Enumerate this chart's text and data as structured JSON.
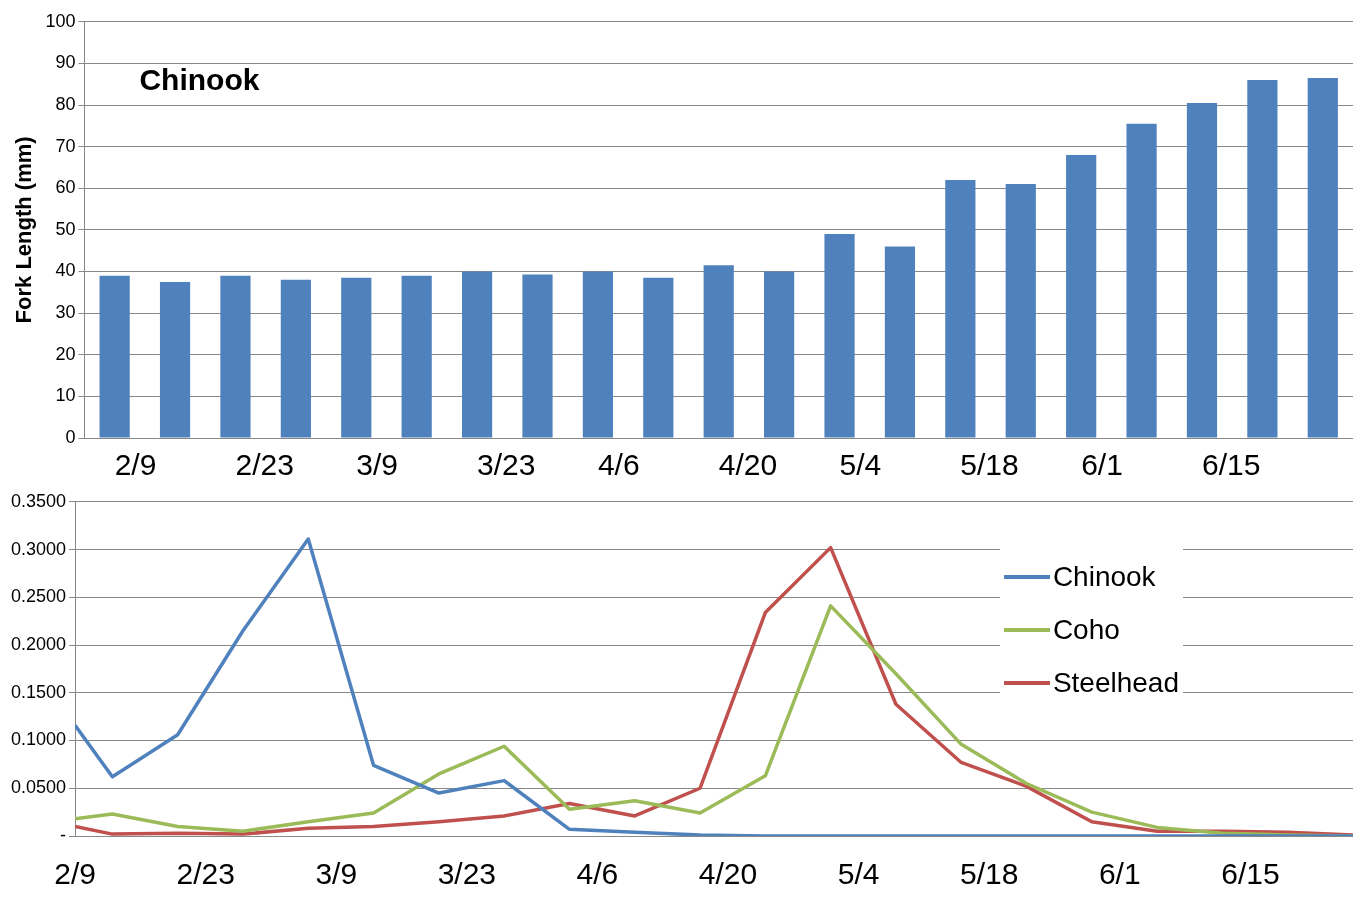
{
  "chart_data": [
    {
      "type": "bar",
      "ylabel": "Fork Length (mm)",
      "annotations": [
        "Chinook"
      ],
      "categories": [
        "2/9",
        null,
        "2/23",
        null,
        "3/9",
        null,
        "3/23",
        null,
        "4/6",
        null,
        "4/20",
        null,
        "5/4",
        null,
        "5/18",
        null,
        "6/1",
        null,
        "6/15",
        null,
        null
      ],
      "values": [
        39,
        37.5,
        39,
        38,
        38.5,
        39,
        40,
        39.3,
        40,
        38.5,
        41.5,
        40,
        49,
        46,
        62,
        61,
        68,
        75.5,
        80.5,
        86,
        86.5
      ],
      "color": "#4f81bd",
      "ylim": [
        0,
        100
      ],
      "yticks": [
        0,
        10,
        20,
        30,
        40,
        50,
        60,
        70,
        80,
        90,
        100
      ],
      "grid": "y",
      "legend": false
    },
    {
      "type": "line",
      "x": [
        "--02-09",
        "--02-13",
        "--02-20",
        "--02-27",
        "--03-06",
        "--03-13",
        "--03-20",
        "--03-27",
        "--04-03",
        "--04-10",
        "--04-17",
        "--04-24",
        "--05-01",
        "--05-08",
        "--05-15",
        "--05-22",
        "--05-29",
        "--06-05",
        "--06-12",
        "--06-19",
        "--06-26"
      ],
      "series": [
        {
          "name": "Chinook",
          "color": "#4f81bd",
          "values": [
            0.116,
            0.062,
            0.106,
            0.215,
            0.311,
            0.074,
            0.045,
            0.058,
            0.007,
            0.004,
            0.001,
            0,
            0,
            0,
            0,
            0,
            0,
            0,
            0,
            0,
            0
          ]
        },
        {
          "name": "Coho",
          "color": "#9bbb59",
          "values": [
            0.018,
            0.023,
            0.01,
            0.005,
            0.015,
            0.024,
            0.065,
            0.094,
            0.028,
            0.037,
            0.024,
            0.063,
            0.241,
            0.17,
            0.096,
            0.055,
            0.025,
            0.009,
            0.003,
            0.001,
            0
          ]
        },
        {
          "name": "Steelhead",
          "color": "#c0504d",
          "values": [
            0.01,
            0.002,
            0.003,
            0.002,
            0.008,
            0.01,
            0.015,
            0.021,
            0.034,
            0.021,
            0.05,
            0.234,
            0.302,
            0.138,
            0.077,
            0.052,
            0.015,
            0.005,
            0.005,
            0.004,
            0.001
          ]
        }
      ],
      "xlim": [
        "--02-09",
        "--06-26"
      ],
      "xticks": [
        {
          "value": "--02-09",
          "label": "2/9"
        },
        {
          "value": "--02-23",
          "label": "2/23"
        },
        {
          "value": "--03-09",
          "label": "3/9"
        },
        {
          "value": "--03-23",
          "label": "3/23"
        },
        {
          "value": "--04-06",
          "label": "4/6"
        },
        {
          "value": "--04-20",
          "label": "4/20"
        },
        {
          "value": "--05-04",
          "label": "5/4"
        },
        {
          "value": "--05-18",
          "label": "5/18"
        },
        {
          "value": "--06-01",
          "label": "6/1"
        },
        {
          "value": "--06-15",
          "label": "6/15"
        }
      ],
      "ylim": [
        0,
        0.35
      ],
      "yticks": [
        {
          "value": 0,
          "label": "-"
        },
        {
          "value": 0.05,
          "label": "0.0500"
        },
        {
          "value": 0.1,
          "label": "0.1000"
        },
        {
          "value": 0.15,
          "label": "0.1500"
        },
        {
          "value": 0.2,
          "label": "0.2000"
        },
        {
          "value": 0.25,
          "label": "0.2500"
        },
        {
          "value": 0.3,
          "label": "0.3000"
        },
        {
          "value": 0.35,
          "label": "0.3500"
        }
      ],
      "grid": "y",
      "legend": "right",
      "marker": "none",
      "line_style": "solid"
    }
  ]
}
